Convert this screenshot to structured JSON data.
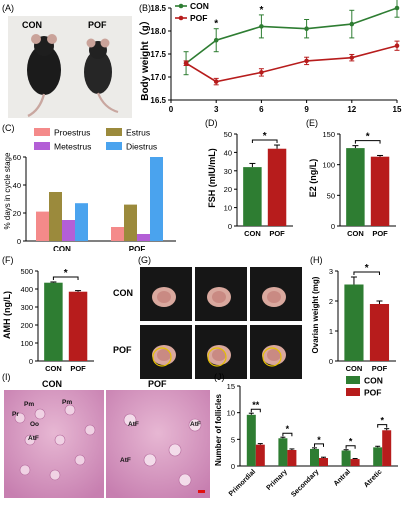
{
  "colors": {
    "con": "#2e7d32",
    "pof": "#b71c1c",
    "proestrus": "#f48a8a",
    "estrus": "#9b8a3c",
    "metestrus": "#b35fd6",
    "diestrus": "#4aa3ee"
  },
  "panelA": {
    "label": "(A)",
    "con": "CON",
    "pof": "POF"
  },
  "panelB": {
    "label": "(B)",
    "chart_data": {
      "type": "line",
      "x": [
        1,
        3,
        6,
        9,
        12,
        15
      ],
      "xticks": [
        "0",
        "3",
        "6",
        "9",
        "12",
        "15"
      ],
      "ylabel": "Body weight（g）",
      "ylim": [
        16.5,
        18.5
      ],
      "yticks": [
        "16.5",
        "17.0",
        "17.5",
        "18.0",
        "18.5"
      ],
      "series": [
        {
          "name": "CON",
          "values": [
            17.3,
            17.8,
            18.1,
            18.05,
            18.15,
            18.5
          ],
          "err": [
            0.25,
            0.25,
            0.25,
            0.2,
            0.3,
            0.2
          ]
        },
        {
          "name": "POF",
          "values": [
            17.3,
            16.9,
            17.1,
            17.35,
            17.42,
            17.68
          ],
          "err": [
            0.05,
            0.07,
            0.08,
            0.08,
            0.07,
            0.1
          ]
        }
      ],
      "sig": [
        "",
        "*",
        "*",
        "",
        "",
        "*"
      ],
      "legend": [
        "CON",
        "POF"
      ]
    }
  },
  "panelC": {
    "label": "(C)",
    "chart_data": {
      "type": "bar",
      "categories": [
        "CON",
        "POF"
      ],
      "series": [
        {
          "name": "Proestrus",
          "values": [
            21,
            10
          ]
        },
        {
          "name": "Estrus",
          "values": [
            35,
            26
          ]
        },
        {
          "name": "Metestrus",
          "values": [
            15,
            5
          ]
        },
        {
          "name": "Diestrus",
          "values": [
            27,
            60
          ]
        }
      ],
      "ylabel": "% days in cycle stage",
      "ylim": [
        0,
        60
      ],
      "yticks": [
        "0",
        "20",
        "40",
        "60"
      ]
    }
  },
  "panelD": {
    "label": "(D)",
    "chart_data": {
      "type": "bar",
      "categories": [
        "CON",
        "POF"
      ],
      "values": [
        32,
        42
      ],
      "err": [
        2,
        2
      ],
      "ylabel": "FSH (mIU/mL)",
      "ylim": [
        0,
        50
      ],
      "yticks": [
        "0",
        "10",
        "20",
        "30",
        "40",
        "50"
      ],
      "sig": "*"
    }
  },
  "panelE": {
    "label": "(E)",
    "chart_data": {
      "type": "bar",
      "categories": [
        "CON",
        "POF"
      ],
      "values": [
        127,
        113
      ],
      "err": [
        4,
        2
      ],
      "ylabel": "E2 (ng/L)",
      "ylim": [
        0,
        150
      ],
      "yticks": [
        "0",
        "50",
        "100",
        "150"
      ],
      "sig": "*"
    }
  },
  "panelF": {
    "label": "(F)",
    "chart_data": {
      "type": "bar",
      "categories": [
        "CON",
        "POF"
      ],
      "values": [
        435,
        385
      ],
      "err": [
        4,
        6
      ],
      "ylabel": "AMH (ng/L)",
      "ylim": [
        0,
        500
      ],
      "yticks": [
        "0",
        "100",
        "200",
        "300",
        "400",
        "500"
      ],
      "sig": "*"
    }
  },
  "panelG": {
    "label": "(G)",
    "con": "CON",
    "pof": "POF"
  },
  "panelH": {
    "label": "(H)",
    "chart_data": {
      "type": "bar",
      "categories": [
        "CON",
        "POF"
      ],
      "values": [
        2.55,
        1.9
      ],
      "err": [
        0.25,
        0.1
      ],
      "ylabel": "Ovarian weight (mg)",
      "ylim": [
        0,
        3
      ],
      "yticks": [
        "0",
        "1",
        "2",
        "3"
      ],
      "sig": "*"
    }
  },
  "panelI": {
    "label": "(I)",
    "con": "CON",
    "pof": "POF",
    "labels_con": [
      "Pm",
      "Pm",
      "Pr",
      "Oo",
      "AtF"
    ],
    "labels_pof": [
      "AtF",
      "AtF",
      "AtF"
    ]
  },
  "panelJ": {
    "label": "(J)",
    "chart_data": {
      "type": "bar",
      "categories": [
        "Primordial",
        "Primary",
        "Secondary",
        "Antral",
        "Atretic"
      ],
      "series": [
        {
          "name": "CON",
          "values": [
            9.6,
            5.2,
            3.2,
            2.9,
            3.5
          ],
          "err": [
            0.3,
            0.2,
            0.2,
            0.15,
            0.2
          ]
        },
        {
          "name": "POF",
          "values": [
            4.0,
            3.0,
            1.5,
            1.3,
            6.7
          ],
          "err": [
            0.2,
            0.2,
            0.15,
            0.1,
            0.3
          ]
        }
      ],
      "sig": [
        "**",
        "*",
        "*",
        "*",
        "*"
      ],
      "ylabel": "Number of follicles",
      "ylim": [
        0,
        15
      ],
      "yticks": [
        "0",
        "5",
        "10",
        "15"
      ],
      "legend": [
        "CON",
        "POF"
      ]
    }
  }
}
